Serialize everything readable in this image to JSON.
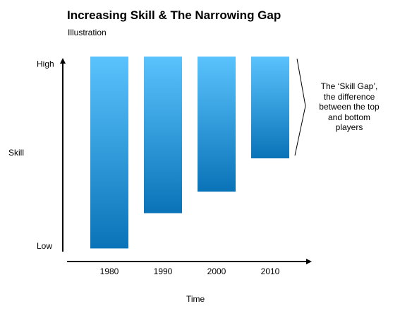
{
  "title": "Increasing Skill & The Narrowing Gap",
  "subtitle": "Illustration",
  "chart_data": {
    "type": "bar",
    "chart_subtype": "floating range bars",
    "categories": [
      "1980",
      "1990",
      "2000",
      "2010"
    ],
    "series": [
      {
        "ranges": [
          {
            "low": 0.02,
            "high": 1.0
          },
          {
            "low": 0.2,
            "high": 1.0
          },
          {
            "low": 0.31,
            "high": 1.0
          },
          {
            "low": 0.48,
            "high": 1.0
          }
        ]
      }
    ],
    "ylim": [
      0,
      1
    ],
    "ytick_labels": [
      "Low",
      "High"
    ],
    "ytick_values": [
      0,
      0.93
    ],
    "xlabel": "Time",
    "ylabel": "Skill",
    "grid": false,
    "bar_gradient": {
      "top": "#5ac3fd",
      "bottom": "#0a73b8"
    },
    "annotation": {
      "text": "The ‘Skill Gap’, the difference between the top and bottom players",
      "target_category": "2010",
      "mark": "right angle bracket"
    }
  }
}
